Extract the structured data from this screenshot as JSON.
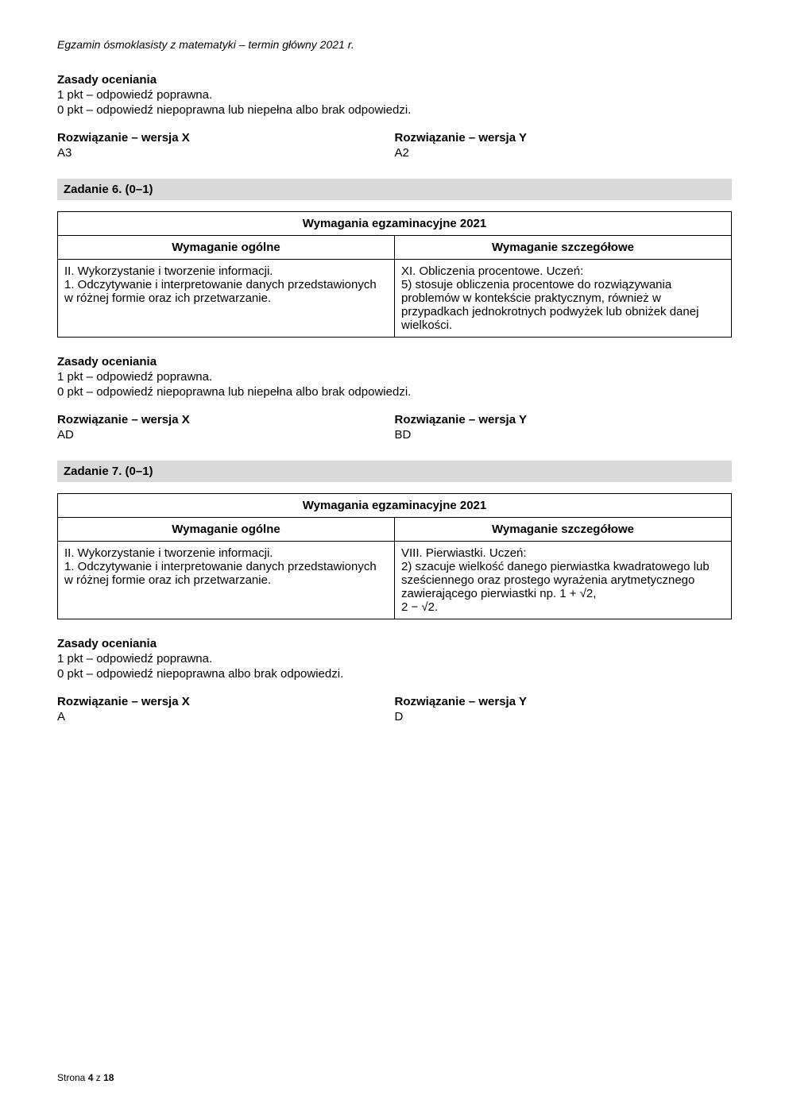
{
  "header": "Egzamin ósmoklasisty z matematyki – termin główny 2021 r.",
  "scoring_heading": "Zasady oceniania",
  "scoring_line1": "1 pkt – odpowiedź poprawna.",
  "scoring_line2_full": "0 pkt – odpowiedź niepoprawna lub niepełna albo brak odpowiedzi.",
  "scoring_line2_short": "0 pkt – odpowiedź niepoprawna albo brak odpowiedzi.",
  "solution_x_label": "Rozwiązanie – wersja X",
  "solution_y_label": "Rozwiązanie – wersja Y",
  "top_solution_x": "A3",
  "top_solution_y": "A2",
  "task6": {
    "bar": "Zadanie 6. (0–1)",
    "table_title": "Wymagania egzaminacyjne 2021",
    "col_left_heading": "Wymaganie ogólne",
    "col_right_heading": "Wymaganie szczegółowe",
    "left_cell": "II. Wykorzystanie i tworzenie informacji.\n1. Odczytywanie i interpretowanie danych przedstawionych w różnej formie oraz ich przetwarzanie.",
    "right_cell": "XI. Obliczenia procentowe. Uczeń:\n5) stosuje obliczenia procentowe do rozwiązywania problemów w kontekście praktycznym, również w przypadkach jednokrotnych podwyżek lub obniżek danej wielkości.",
    "solution_x": "AD",
    "solution_y": "BD"
  },
  "task7": {
    "bar": "Zadanie 7. (0–1)",
    "table_title": "Wymagania egzaminacyjne 2021",
    "col_left_heading": "Wymaganie ogólne",
    "col_right_heading": "Wymaganie szczegółowe",
    "left_cell": "II. Wykorzystanie i tworzenie informacji.\n1. Odczytywanie i interpretowanie danych przedstawionych w różnej formie oraz ich przetwarzanie.",
    "right_cell_pre": "VIII. Pierwiastki. Uczeń:\n2) szacuje wielkość danego pierwiastka kwadratowego lub sześciennego oraz prostego wyrażenia arytmetycznego zawierającego pierwiastki np. ",
    "right_cell_math1": "1 + √2",
    "right_cell_mid": ",\n",
    "right_cell_math2": "2 − √2",
    "right_cell_post": ".",
    "solution_x": "A",
    "solution_y": "D"
  },
  "footer_pre": "Strona ",
  "footer_page": "4",
  "footer_mid": " z ",
  "footer_total": "18"
}
